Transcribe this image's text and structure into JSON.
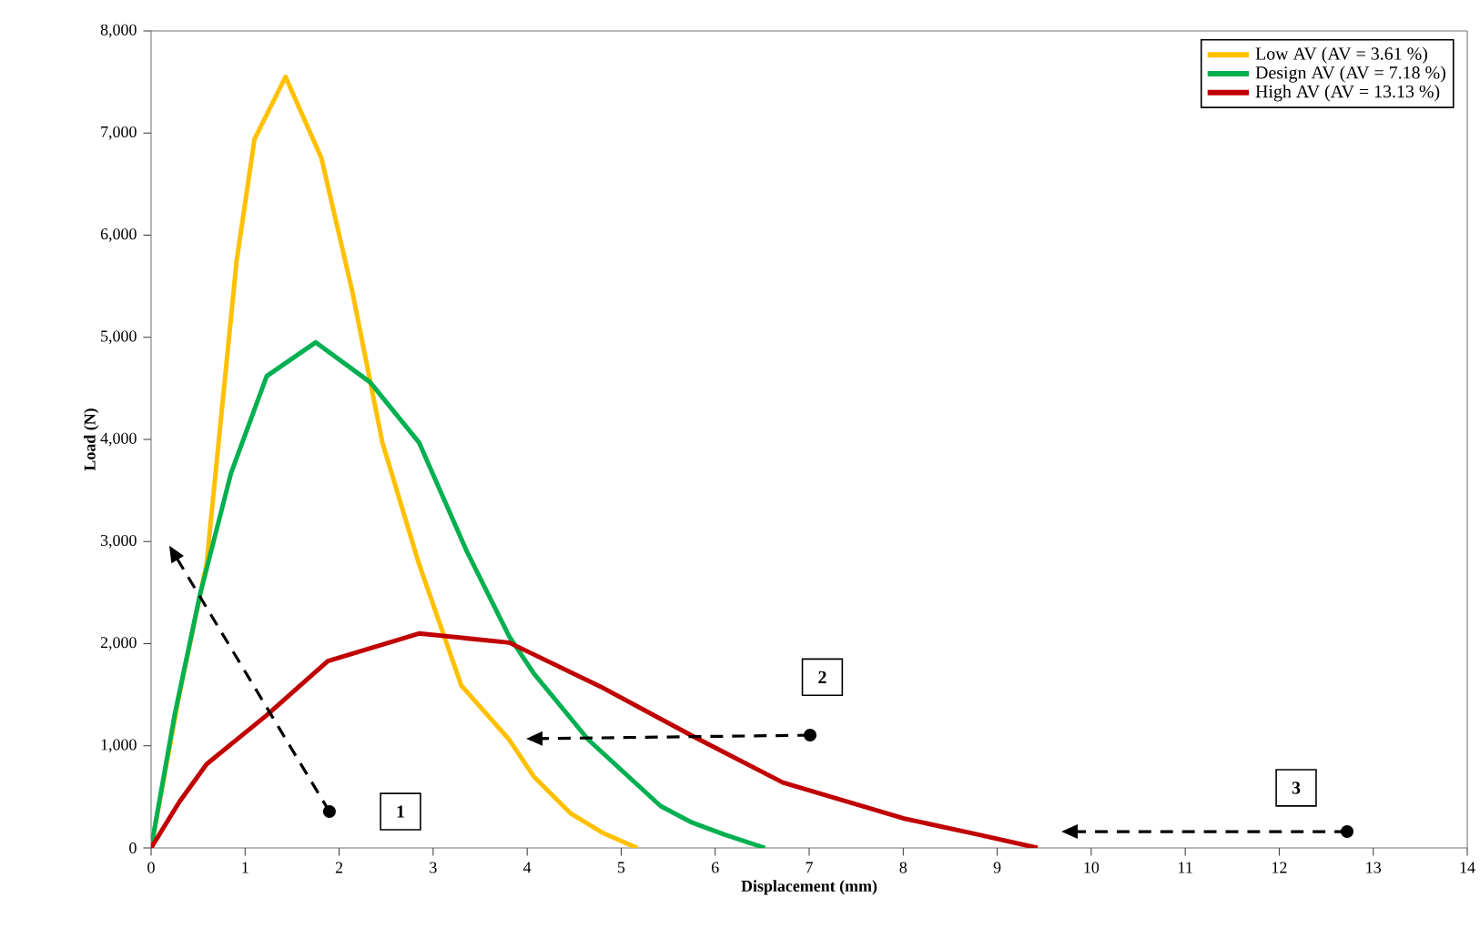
{
  "chart_data": {
    "type": "line",
    "xlabel": "Displacement (mm)",
    "ylabel": "Load (N)",
    "xlim": [
      0,
      14
    ],
    "ylim": [
      0,
      8000
    ],
    "xticks": [
      0,
      1,
      2,
      3,
      4,
      5,
      6,
      7,
      8,
      9,
      10,
      11,
      12,
      13,
      14
    ],
    "yticks": [
      0,
      {
        "value": 1000,
        "label": "1,000"
      },
      {
        "value": 2000,
        "label": "2,000"
      },
      {
        "value": 3000,
        "label": "3,000"
      },
      {
        "value": 4000,
        "label": "4,000"
      },
      {
        "value": 5000,
        "label": "5,000"
      },
      {
        "value": 6000,
        "label": "6,000"
      },
      {
        "value": 7000,
        "label": "7,000"
      },
      {
        "value": 8000,
        "label": "8,000"
      }
    ],
    "legend": "top right",
    "grid": false,
    "marker": "none",
    "line_style": "solid",
    "series": [
      {
        "name": "Low AV (AV = 3.61 %)",
        "color": "#ffc000",
        "x": [
          0,
          0.3,
          0.59,
          0.91,
          1.1,
          1.43,
          1.81,
          2.14,
          2.46,
          2.85,
          3.3,
          3.81,
          4.07,
          4.46,
          4.8,
          5.17
        ],
        "values": [
          0,
          1500,
          2780,
          5750,
          6940,
          7550,
          6760,
          5450,
          3970,
          2780,
          1590,
          1060,
          700,
          340,
          150,
          0
        ]
      },
      {
        "name": "Design AV (AV = 7.18 %)",
        "color": "#00b050",
        "x": [
          0,
          0.25,
          0.52,
          0.85,
          1.23,
          1.75,
          2.33,
          2.85,
          3.36,
          3.81,
          4.07,
          4.65,
          5.42,
          5.75,
          6.1,
          6.53
        ],
        "values": [
          0,
          1300,
          2480,
          3670,
          4620,
          4950,
          4560,
          3970,
          2900,
          2070,
          1710,
          1060,
          410,
          250,
          130,
          0
        ]
      },
      {
        "name": "High AV (AV = 13.13 %)",
        "color": "#c00000",
        "x": [
          0,
          0.3,
          0.59,
          1.23,
          1.88,
          2.85,
          3.81,
          4.78,
          5.75,
          6.72,
          8.0,
          8.8,
          9.43
        ],
        "values": [
          0,
          450,
          820,
          1300,
          1830,
          2100,
          2010,
          1580,
          1100,
          640,
          290,
          130,
          0
        ]
      }
    ],
    "annotations": [
      "1",
      "2",
      "3"
    ]
  }
}
